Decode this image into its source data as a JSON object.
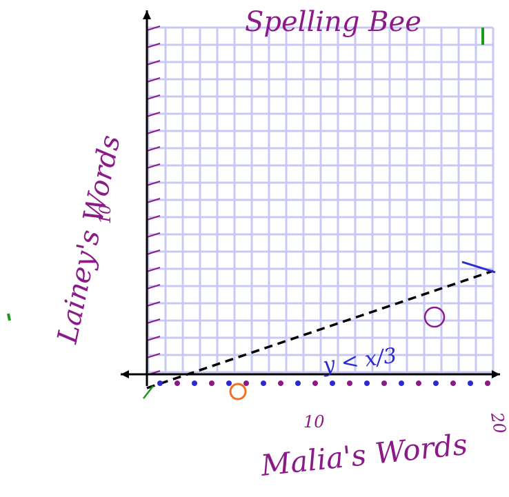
{
  "title": "Spelling Bee",
  "y_axis_label": "Lainey's Words",
  "x_axis_label": "Malia's Words",
  "x_tick_labels": [
    "10",
    "20"
  ],
  "y_tick_labels": [
    "10"
  ],
  "inequality": "y < x/3"
}
